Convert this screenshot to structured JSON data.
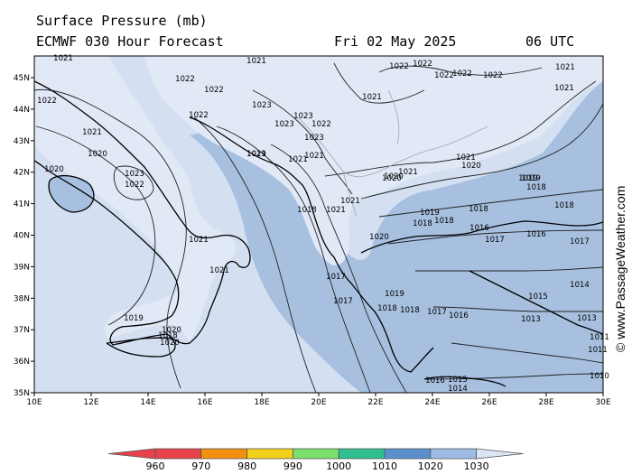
{
  "header": {
    "title": "Surface Pressure (mb)",
    "model": "ECMWF 030 Hour Forecast",
    "date": "Fri 02 May 2025",
    "time": "06 UTC"
  },
  "map": {
    "lon_labels": [
      "10E",
      "12E",
      "14E",
      "16E",
      "18E",
      "20E",
      "22E",
      "24E",
      "26E",
      "28E",
      "30E"
    ],
    "lat_labels": [
      "45N",
      "44N",
      "43N",
      "42N",
      "41N",
      "40N",
      "39N",
      "38N",
      "37N",
      "36N",
      "35N"
    ],
    "isobar_labels": [
      "1021",
      "1021",
      "1022",
      "1022",
      "1022",
      "1022",
      "1022",
      "1022",
      "1022",
      "1022",
      "1021",
      "1021",
      "1023",
      "1023",
      "1023",
      "1022",
      "1023",
      "1022",
      "1021",
      "1020",
      "1021",
      "1021",
      "1023",
      "1022",
      "1020",
      "1021",
      "1021",
      "1021",
      "1019",
      "1020",
      "1021",
      "1020",
      "1020",
      "1019",
      "1018",
      "1021",
      "1018",
      "1021",
      "1019",
      "1018",
      "1018",
      "1019",
      "1018",
      "1016",
      "1018",
      "1017",
      "1016",
      "1017",
      "1014",
      "1015",
      "1017",
      "1017",
      "1019",
      "1018",
      "1018",
      "1017",
      "1016",
      "1013",
      "1013",
      "1011",
      "1021",
      "1021",
      "1020",
      "1020",
      "1016",
      "1015",
      "1014",
      "1011",
      "1010",
      "1019",
      "1018",
      "1020",
      "1011"
    ],
    "colors": {
      "land": "#e1e9f6",
      "sea_1020": "#cbd9ee",
      "sea_1010": "#a7c0e0"
    }
  },
  "legend": {
    "labels": [
      "960",
      "970",
      "980",
      "990",
      "1000",
      "1010",
      "1020",
      "1030"
    ],
    "colors": [
      "#e8424a",
      "#f29010",
      "#f3d11a",
      "#7be06b",
      "#2fbf90",
      "#5b8fce",
      "#9fbde4",
      "#dbe6f5"
    ]
  },
  "copyright": "© www.PassageWeather.com"
}
